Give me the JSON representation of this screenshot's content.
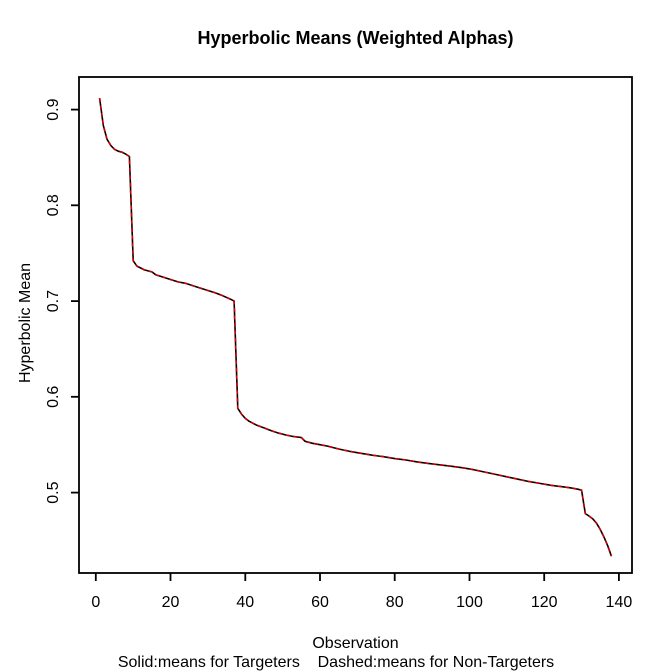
{
  "chart_data": {
    "type": "line",
    "title": "Hyperbolic Means (Weighted Alphas)",
    "xlabel": "Observation",
    "ylabel": "Hyperbolic Mean",
    "footnote": "Solid:means for Targeters    Dashed:means for Non-Targeters",
    "x_ticks": [
      0,
      20,
      40,
      60,
      80,
      100,
      120,
      140
    ],
    "y_ticks": [
      "0.5",
      "0.6",
      "0.7",
      "0.8",
      "0.9"
    ],
    "xlim": [
      -4.5,
      143.5
    ],
    "ylim": [
      0.416,
      0.934
    ],
    "grid": false,
    "legend_position": "bottom-footnote",
    "series": [
      {
        "name": "means for Targeters",
        "line_style": "solid",
        "color": "#000000"
      },
      {
        "name": "means for Non-Targeters",
        "line_style": "dashed",
        "color": "#cc0000"
      }
    ],
    "series_note": "Both curves overlap almost exactly; shared data points below (observation, hyperbolic mean).",
    "points": [
      [
        1,
        0.912
      ],
      [
        2,
        0.8835
      ],
      [
        3,
        0.869
      ],
      [
        4,
        0.8625
      ],
      [
        5,
        0.8585
      ],
      [
        6,
        0.8565
      ],
      [
        7,
        0.8555
      ],
      [
        8,
        0.8535
      ],
      [
        9,
        0.851
      ],
      [
        10,
        0.742
      ],
      [
        11,
        0.7365
      ],
      [
        13,
        0.7325
      ],
      [
        15,
        0.7305
      ],
      [
        16,
        0.7275
      ],
      [
        18,
        0.725
      ],
      [
        20,
        0.7225
      ],
      [
        22,
        0.72
      ],
      [
        24,
        0.7185
      ],
      [
        26,
        0.716
      ],
      [
        28,
        0.7135
      ],
      [
        30,
        0.711
      ],
      [
        32,
        0.7085
      ],
      [
        34,
        0.7055
      ],
      [
        36,
        0.702
      ],
      [
        37,
        0.7
      ],
      [
        38,
        0.588
      ],
      [
        39,
        0.582
      ],
      [
        40,
        0.5775
      ],
      [
        41,
        0.5745
      ],
      [
        43,
        0.5705
      ],
      [
        45,
        0.5675
      ],
      [
        47,
        0.5645
      ],
      [
        49,
        0.562
      ],
      [
        51,
        0.56
      ],
      [
        53,
        0.5585
      ],
      [
        55,
        0.5575
      ],
      [
        56,
        0.5535
      ],
      [
        58,
        0.5515
      ],
      [
        60,
        0.55
      ],
      [
        62,
        0.5485
      ],
      [
        65,
        0.5455
      ],
      [
        68,
        0.543
      ],
      [
        71,
        0.541
      ],
      [
        74,
        0.539
      ],
      [
        77,
        0.5375
      ],
      [
        80,
        0.5355
      ],
      [
        83,
        0.534
      ],
      [
        86,
        0.532
      ],
      [
        89,
        0.5305
      ],
      [
        92,
        0.529
      ],
      [
        95,
        0.5275
      ],
      [
        98,
        0.526
      ],
      [
        101,
        0.524
      ],
      [
        104,
        0.5215
      ],
      [
        107,
        0.519
      ],
      [
        110,
        0.5165
      ],
      [
        113,
        0.514
      ],
      [
        116,
        0.5115
      ],
      [
        119,
        0.5095
      ],
      [
        122,
        0.5075
      ],
      [
        125,
        0.506
      ],
      [
        127,
        0.505
      ],
      [
        129,
        0.5035
      ],
      [
        130,
        0.5025
      ],
      [
        131,
        0.478
      ],
      [
        132,
        0.4755
      ],
      [
        133,
        0.4725
      ],
      [
        134,
        0.468
      ],
      [
        135,
        0.4615
      ],
      [
        136,
        0.4535
      ],
      [
        137,
        0.4445
      ],
      [
        138,
        0.4335
      ]
    ]
  }
}
